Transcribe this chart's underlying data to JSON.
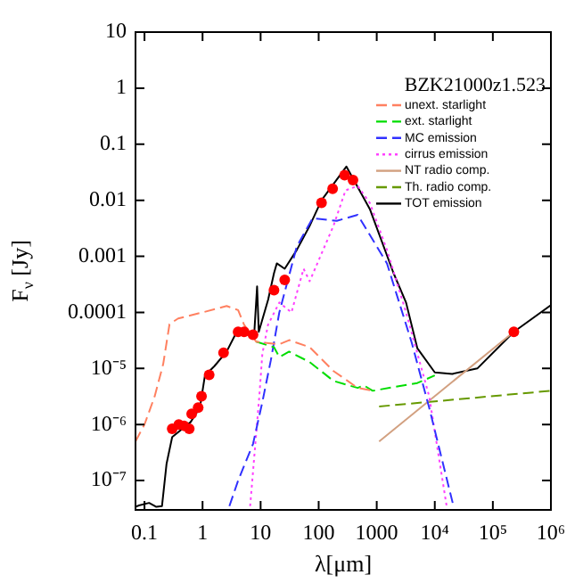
{
  "chart_data": {
    "type": "line",
    "title": "BZK21000z1.523",
    "xlabel": "λ[μm]",
    "ylabel": "F$_{ν}$ [Jy]",
    "log": "xy",
    "legend": "top right",
    "grid": false,
    "xlim": [
      0.07,
      1000000
    ],
    "ylim": [
      3.3e-08,
      10
    ],
    "xticks": [
      0.1,
      1,
      10,
      100,
      1000,
      {
        "value": 10000,
        "label": "10⁴"
      },
      {
        "value": 100000,
        "label": "10⁵"
      },
      {
        "value": 1000000,
        "label": "10⁶"
      }
    ],
    "yticks": [
      {
        "value": 1e-07,
        "label": "10⁻⁷"
      },
      {
        "value": 1e-06,
        "label": "10⁻⁶"
      },
      {
        "value": 1e-05,
        "label": "10⁻⁵"
      },
      0.0001,
      0.001,
      0.01,
      0.1,
      1,
      10
    ],
    "series": [
      {
        "name": "unext. starlight",
        "color": "#ff8060",
        "line_style": "dashed",
        "x": [
          0.07,
          0.1,
          0.15,
          0.21,
          0.27,
          0.38,
          1,
          2.6,
          4.1,
          5.2,
          8.4,
          21,
          31,
          70,
          180,
          470,
          850
        ],
        "values": [
          5e-07,
          1e-06,
          3.2e-06,
          1.2e-05,
          6.2e-05,
          7.8e-05,
          0.0001,
          0.00013,
          0.00011,
          6e-05,
          3e-05,
          2.7e-05,
          3.2e-05,
          2.4e-05,
          9e-06,
          4.5e-06,
          4e-06
        ]
      },
      {
        "name": "ext. starlight",
        "color": "#00dd00",
        "line_style": "dashed",
        "x": [
          8.4,
          17,
          21,
          31,
          70,
          180,
          470,
          600,
          850,
          5000,
          10000
        ],
        "values": [
          3e-05,
          2.4e-05,
          1.6e-05,
          2e-05,
          1.3e-05,
          6e-06,
          4.5e-06,
          5e-06,
          4e-06,
          5.5e-06,
          7.5e-06
        ]
      },
      {
        "name": "MC emission",
        "color": "#3030ff",
        "line_style": "dashed",
        "x": [
          2.9,
          4.1,
          7.4,
          10.7,
          15,
          21,
          42,
          79,
          205,
          470,
          1500,
          4000,
          8000,
          21000
        ],
        "values": [
          3.5e-08,
          1e-07,
          4.5e-07,
          2.5e-06,
          1.4e-05,
          0.0001,
          0.0015,
          0.0048,
          0.0043,
          0.0055,
          0.00075,
          2.9e-05,
          2e-06,
          3.5e-08
        ]
      },
      {
        "name": "cirrus emission",
        "color": "#ff40ff",
        "line_style": "dotted",
        "x": [
          6.6,
          9.5,
          10.7,
          13.4,
          21,
          34,
          55,
          70,
          180,
          290,
          470,
          760,
          1500,
          3200,
          8000,
          16000
        ],
        "values": [
          3.5e-08,
          3.2e-06,
          1.8e-05,
          6e-05,
          0.00015,
          0.0001,
          0.0006,
          0.00036,
          0.0035,
          0.015,
          0.018,
          0.009,
          0.0013,
          0.0001,
          3.2e-06,
          3.5e-08
        ]
      },
      {
        "name": "NT radio comp.",
        "color": "#d2a080",
        "line_style": "solid",
        "x": [
          1100,
          230000
        ],
        "values": [
          5e-07,
          4.5e-05
        ]
      },
      {
        "name": "Th. radio comp.",
        "color": "#669900",
        "line_style": "dashed",
        "x": [
          1100,
          1000000
        ],
        "values": [
          2.1e-06,
          4e-06
        ]
      },
      {
        "name": "TOT emission",
        "color": "#000000",
        "line_style": "solid",
        "x": [
          0.07,
          0.08,
          0.12,
          0.16,
          0.2,
          0.24,
          0.3,
          0.62,
          0.9,
          1.1,
          1.6,
          2.6,
          4,
          6,
          7.8,
          8.7,
          9.3,
          13.5,
          17,
          19,
          26,
          42,
          70,
          112,
          300,
          760,
          1950,
          3200,
          5000,
          10000,
          20000,
          54000,
          230000,
          1000000
        ],
        "values": [
          3.4e-08,
          3.6e-08,
          4e-08,
          3.4e-08,
          3.5e-08,
          2e-07,
          6e-07,
          1.1e-06,
          2e-06,
          7.5e-06,
          1.1e-05,
          2e-05,
          4.8e-05,
          4.3e-05,
          4.5e-05,
          0.00029,
          4.5e-05,
          0.00017,
          0.0005,
          0.00075,
          0.0006,
          0.0013,
          0.0035,
          0.01,
          0.04,
          0.007,
          0.0005,
          0.00015,
          2.3e-05,
          8.5e-06,
          8e-06,
          1e-05,
          4.5e-05,
          0.000135
        ]
      },
      {
        "type": "scatter",
        "color": "#ff0000",
        "marker": "circle",
        "x": [
          0.3,
          0.39,
          0.48,
          0.59,
          0.65,
          0.84,
          0.96,
          1.3,
          2.3,
          4.1,
          5.2,
          7.4,
          17,
          26,
          112,
          174,
          280,
          390,
          230000
        ],
        "values": [
          8.4e-07,
          1e-06,
          9.5e-07,
          8.4e-07,
          1.55e-06,
          2e-06,
          3.2e-06,
          7.7e-06,
          1.9e-05,
          4.5e-05,
          4.5e-05,
          4e-05,
          0.00025,
          0.00038,
          0.009,
          0.016,
          0.028,
          0.023,
          4.5e-05
        ]
      }
    ]
  }
}
